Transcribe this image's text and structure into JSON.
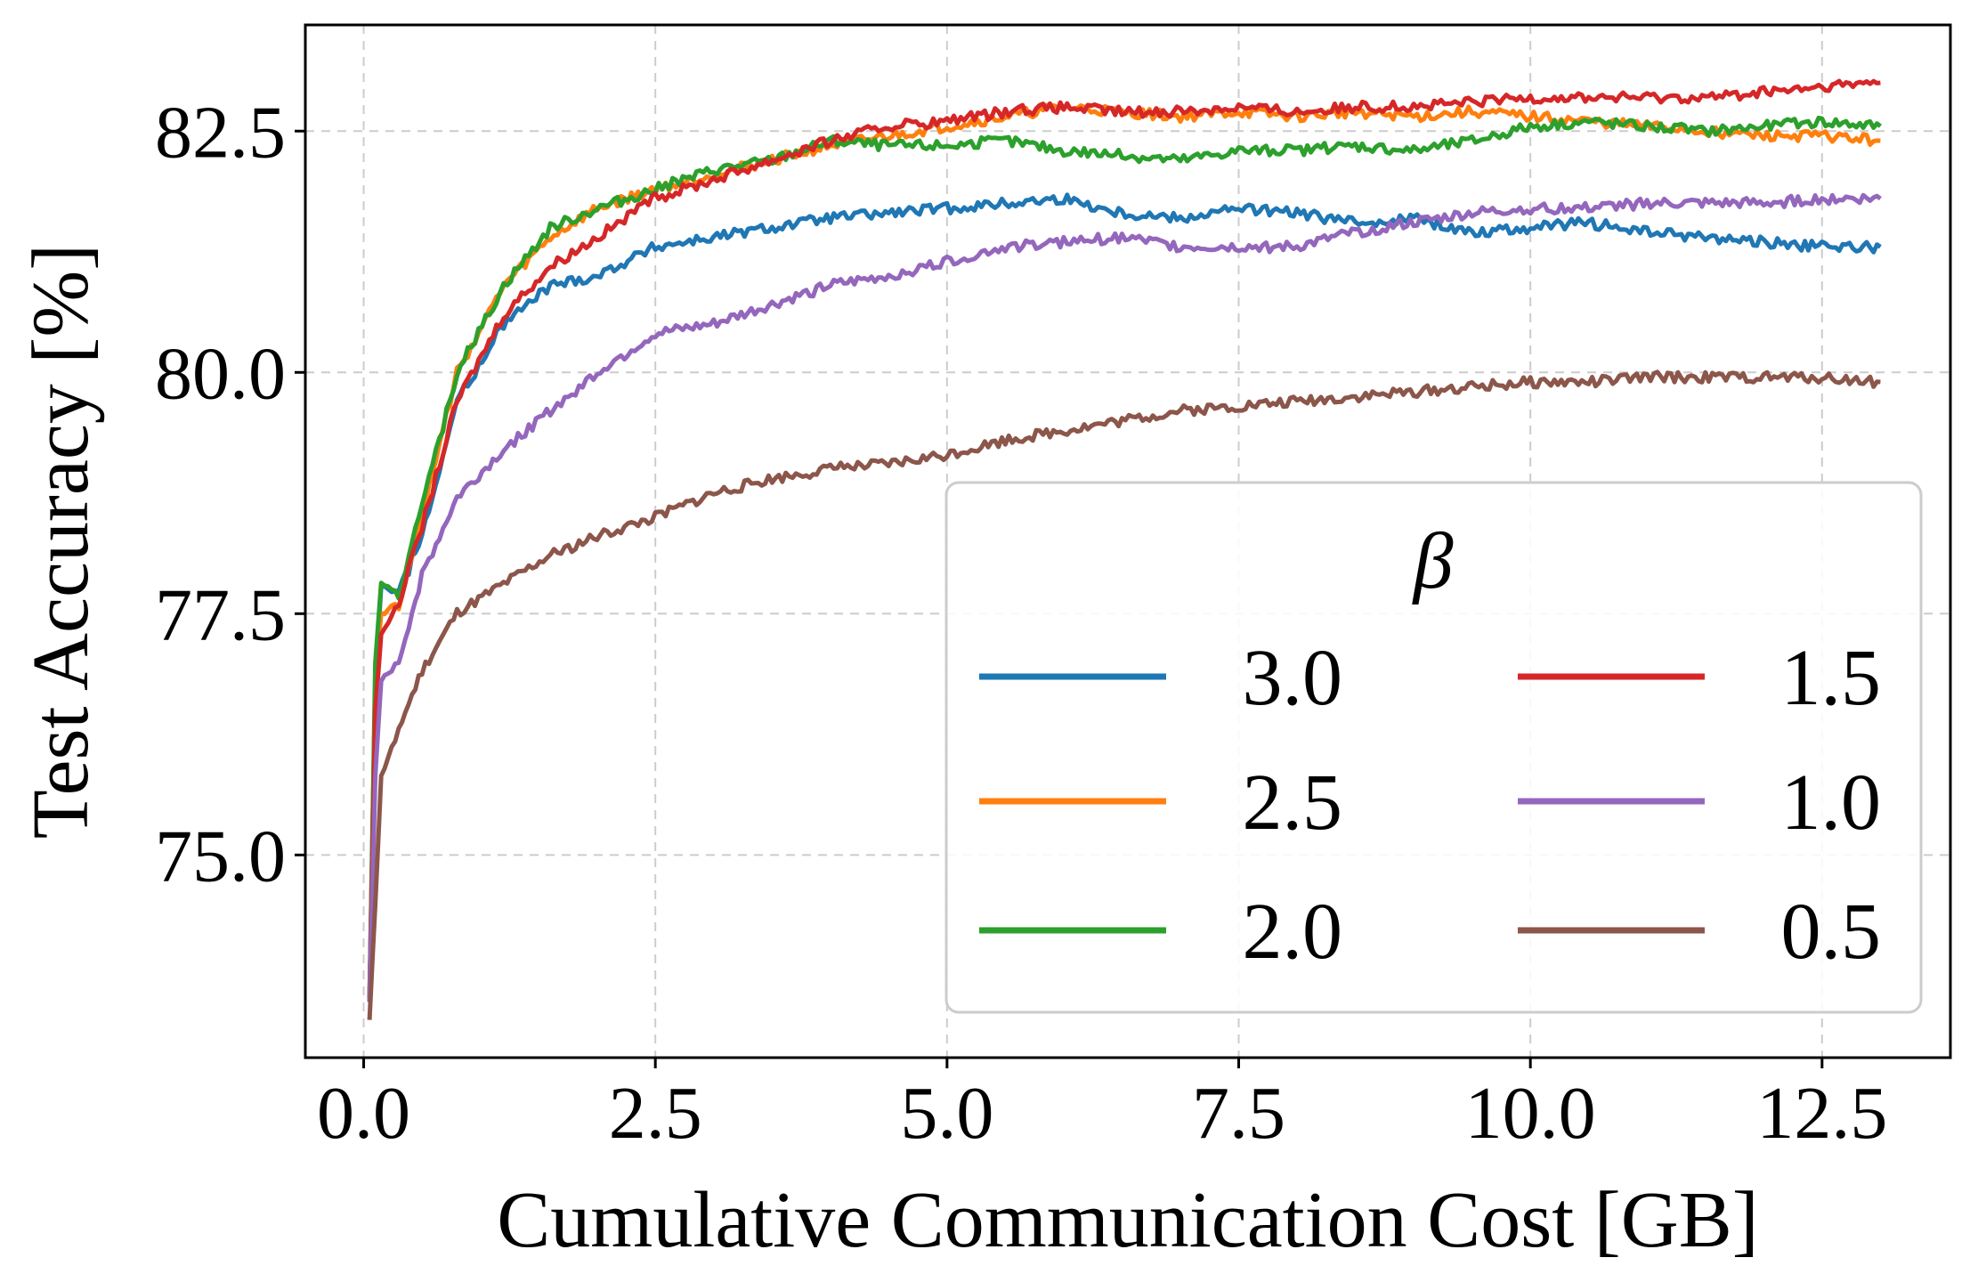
{
  "chart_data": {
    "type": "line",
    "title": "",
    "xlabel": "Cumulative Communication Cost [GB]",
    "ylabel": "Test Accuracy [%]",
    "xlim": [
      -0.5,
      13.6
    ],
    "ylim": [
      72.9,
      83.6
    ],
    "xticks": [
      0.0,
      2.5,
      5.0,
      7.5,
      10.0,
      12.5
    ],
    "xtick_labels": [
      "0.0",
      "2.5",
      "5.0",
      "7.5",
      "10.0",
      "12.5"
    ],
    "yticks": [
      75.0,
      77.5,
      80.0,
      82.5
    ],
    "ytick_labels": [
      "75.0",
      "77.5",
      "80.0",
      "82.5"
    ],
    "grid": true,
    "legend": {
      "title": "β",
      "position": "lower-right",
      "columns": 2
    },
    "series": [
      {
        "name": "3.0",
        "color": "#1f77b4",
        "x": [
          0.05,
          0.1,
          0.15,
          0.3,
          0.5,
          0.8,
          1.2,
          1.6,
          2.0,
          2.5,
          3.0,
          3.5,
          4.0,
          4.5,
          5.0,
          5.5,
          6.0,
          6.5,
          7.0,
          7.5,
          8.0,
          8.5,
          9.0,
          9.5,
          10.0,
          10.5,
          11.0,
          11.5,
          12.0,
          12.5,
          13.0
        ],
        "y": [
          73.5,
          76.8,
          77.8,
          77.7,
          78.3,
          79.7,
          80.5,
          80.9,
          81.0,
          81.3,
          81.4,
          81.5,
          81.6,
          81.65,
          81.7,
          81.75,
          81.8,
          81.65,
          81.6,
          81.7,
          81.65,
          81.55,
          81.6,
          81.45,
          81.5,
          81.55,
          81.45,
          81.4,
          81.35,
          81.3,
          81.3
        ]
      },
      {
        "name": "2.5",
        "color": "#ff7f0e",
        "x": [
          0.05,
          0.1,
          0.15,
          0.3,
          0.5,
          0.8,
          1.2,
          1.6,
          2.0,
          2.5,
          3.0,
          3.5,
          4.0,
          4.5,
          5.0,
          5.5,
          6.0,
          6.5,
          7.0,
          7.5,
          8.0,
          8.5,
          9.0,
          9.5,
          10.0,
          10.5,
          11.0,
          11.5,
          12.0,
          12.5,
          13.0
        ],
        "y": [
          73.5,
          76.8,
          77.5,
          77.6,
          78.5,
          80.0,
          80.9,
          81.4,
          81.7,
          81.9,
          82.05,
          82.2,
          82.35,
          82.45,
          82.55,
          82.65,
          82.75,
          82.7,
          82.65,
          82.7,
          82.65,
          82.7,
          82.65,
          82.7,
          82.65,
          82.6,
          82.55,
          82.5,
          82.45,
          82.45,
          82.4
        ]
      },
      {
        "name": "2.0",
        "color": "#2ca02c",
        "x": [
          0.05,
          0.1,
          0.15,
          0.3,
          0.5,
          0.8,
          1.2,
          1.6,
          2.0,
          2.5,
          3.0,
          3.5,
          4.0,
          4.5,
          5.0,
          5.5,
          6.0,
          6.5,
          7.0,
          7.5,
          8.0,
          8.5,
          9.0,
          9.5,
          10.0,
          10.5,
          11.0,
          11.5,
          12.0,
          12.5,
          13.0
        ],
        "y": [
          73.5,
          77.0,
          77.8,
          77.7,
          78.6,
          80.0,
          80.9,
          81.5,
          81.7,
          81.9,
          82.1,
          82.2,
          82.4,
          82.35,
          82.35,
          82.4,
          82.3,
          82.25,
          82.2,
          82.3,
          82.3,
          82.35,
          82.3,
          82.4,
          82.55,
          82.6,
          82.55,
          82.5,
          82.55,
          82.6,
          82.55
        ]
      },
      {
        "name": "1.5",
        "color": "#d62728",
        "x": [
          0.05,
          0.1,
          0.15,
          0.3,
          0.5,
          0.8,
          1.2,
          1.6,
          2.0,
          2.5,
          3.0,
          3.5,
          4.0,
          4.5,
          5.0,
          5.5,
          6.0,
          6.5,
          7.0,
          7.5,
          8.0,
          8.5,
          9.0,
          9.5,
          10.0,
          10.5,
          11.0,
          11.5,
          12.0,
          12.5,
          13.0
        ],
        "y": [
          73.5,
          76.5,
          77.3,
          77.6,
          78.4,
          79.7,
          80.6,
          81.1,
          81.4,
          81.8,
          82.0,
          82.2,
          82.4,
          82.55,
          82.6,
          82.7,
          82.75,
          82.7,
          82.7,
          82.75,
          82.7,
          82.75,
          82.75,
          82.8,
          82.85,
          82.85,
          82.85,
          82.85,
          82.9,
          82.95,
          83.0
        ]
      },
      {
        "name": "1.0",
        "color": "#9467bd",
        "x": [
          0.05,
          0.1,
          0.15,
          0.3,
          0.5,
          0.8,
          1.2,
          1.6,
          2.0,
          2.5,
          3.0,
          3.5,
          4.0,
          4.5,
          5.0,
          5.5,
          6.0,
          6.5,
          7.0,
          7.5,
          8.0,
          8.5,
          9.0,
          9.5,
          10.0,
          10.5,
          11.0,
          11.5,
          12.0,
          12.5,
          13.0
        ],
        "y": [
          73.5,
          75.8,
          76.8,
          77.0,
          77.9,
          78.7,
          79.2,
          79.6,
          80.0,
          80.4,
          80.5,
          80.7,
          80.9,
          81.0,
          81.15,
          81.3,
          81.35,
          81.4,
          81.3,
          81.3,
          81.3,
          81.45,
          81.55,
          81.65,
          81.7,
          81.7,
          81.75,
          81.75,
          81.75,
          81.8,
          81.8
        ]
      },
      {
        "name": "0.5",
        "color": "#8c564b",
        "x": [
          0.05,
          0.1,
          0.15,
          0.3,
          0.5,
          0.8,
          1.2,
          1.6,
          2.0,
          2.5,
          3.0,
          3.5,
          4.0,
          4.5,
          5.0,
          5.5,
          6.0,
          6.5,
          7.0,
          7.5,
          8.0,
          8.5,
          9.0,
          9.5,
          10.0,
          10.5,
          11.0,
          11.5,
          12.0,
          12.5,
          13.0
        ],
        "y": [
          73.3,
          74.5,
          75.8,
          76.3,
          76.9,
          77.5,
          77.8,
          78.1,
          78.3,
          78.5,
          78.75,
          78.9,
          79.0,
          79.05,
          79.15,
          79.3,
          79.4,
          79.5,
          79.6,
          79.65,
          79.7,
          79.75,
          79.8,
          79.85,
          79.9,
          79.9,
          79.95,
          79.95,
          79.95,
          79.95,
          79.9
        ]
      }
    ]
  }
}
